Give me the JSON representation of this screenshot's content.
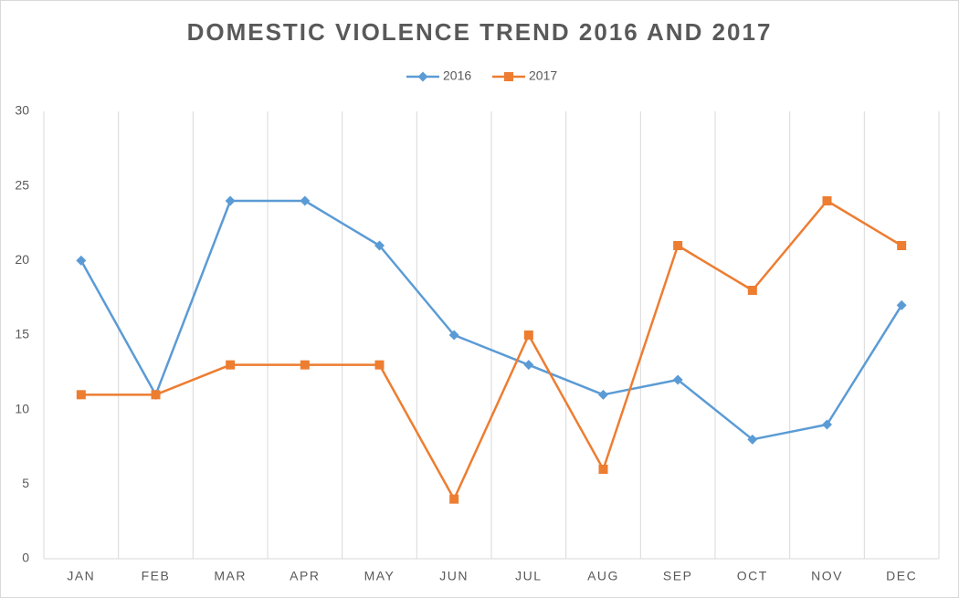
{
  "chart_data": {
    "type": "line",
    "title": "DOMESTIC VIOLENCE TREND 2016 AND 2017",
    "categories": [
      "JAN",
      "FEB",
      "MAR",
      "APR",
      "MAY",
      "JUN",
      "JUL",
      "AUG",
      "SEP",
      "OCT",
      "NOV",
      "DEC"
    ],
    "series": [
      {
        "name": "2016",
        "color": "#5b9bd5",
        "marker": "diamond",
        "values": [
          20,
          11,
          24,
          24,
          21,
          15,
          13,
          11,
          12,
          8,
          9,
          17
        ]
      },
      {
        "name": "2017",
        "color": "#ed7d31",
        "marker": "square",
        "values": [
          11,
          11,
          13,
          13,
          13,
          4,
          15,
          6,
          21,
          18,
          24,
          21
        ]
      }
    ],
    "ylim": [
      0,
      30
    ],
    "yticks": [
      0,
      5,
      10,
      15,
      20,
      25,
      30
    ],
    "grid": true,
    "legend": "top"
  }
}
